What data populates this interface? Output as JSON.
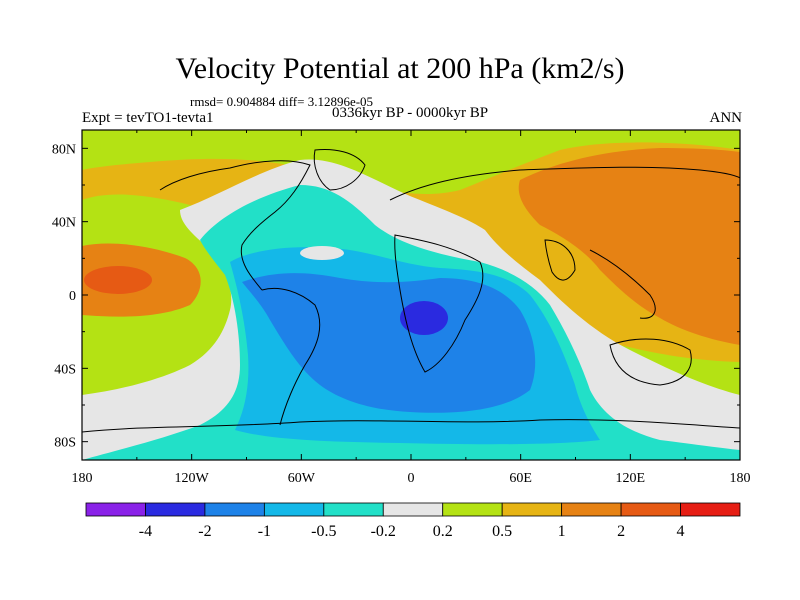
{
  "title": "Velocity Potential at 200 hPa (km2/s)",
  "stats": "rmsd= 0.904884 diff= 3.12896e-05",
  "expt": "Expt = tevTO1-tevta1",
  "period": "0336kyr BP - 0000kyr BP",
  "season": "ANN",
  "chart_data": {
    "type": "heatmap",
    "projection": "cylindrical equidistant",
    "x_ticks": [
      "180",
      "120W",
      "60W",
      "0",
      "60E",
      "120E",
      "180"
    ],
    "x_range": [
      -180,
      180
    ],
    "y_ticks": [
      "80N",
      "40N",
      "0",
      "40S",
      "80S"
    ],
    "y_tick_values": [
      80,
      40,
      0,
      -40,
      -80
    ],
    "y_range": [
      -90,
      90
    ],
    "contour_levels": [
      "-4",
      "-2",
      "-1",
      "-0.5",
      "-0.2",
      "0.2",
      "0.5",
      "1",
      "2",
      "4"
    ],
    "colorbar_colors": [
      "#8A22E8",
      "#2A2AE0",
      "#1E82E8",
      "#14B8E8",
      "#22E0C8",
      "#E6E6E6",
      "#B4E214",
      "#E6B414",
      "#E68214",
      "#E65A14",
      "#E61E14"
    ],
    "fields": [
      {
        "value_range": "-0.5 to -0.2",
        "region": "tropical Atlantic and Americas belt"
      },
      {
        "value_range": "-1 to -0.5",
        "region": "South America, South Atlantic, southern Africa"
      },
      {
        "value_range": "-2 to -1",
        "region": "central South Atlantic"
      },
      {
        "value_range": "< -2",
        "region": "off southwest Africa near 10S, 5E"
      },
      {
        "value_range": "1 to 2",
        "region": "Eurasia / Indo-Pacific and central Pacific"
      },
      {
        "value_range": "2 to 4",
        "region": "central Pacific near 5N, 170W"
      }
    ]
  }
}
